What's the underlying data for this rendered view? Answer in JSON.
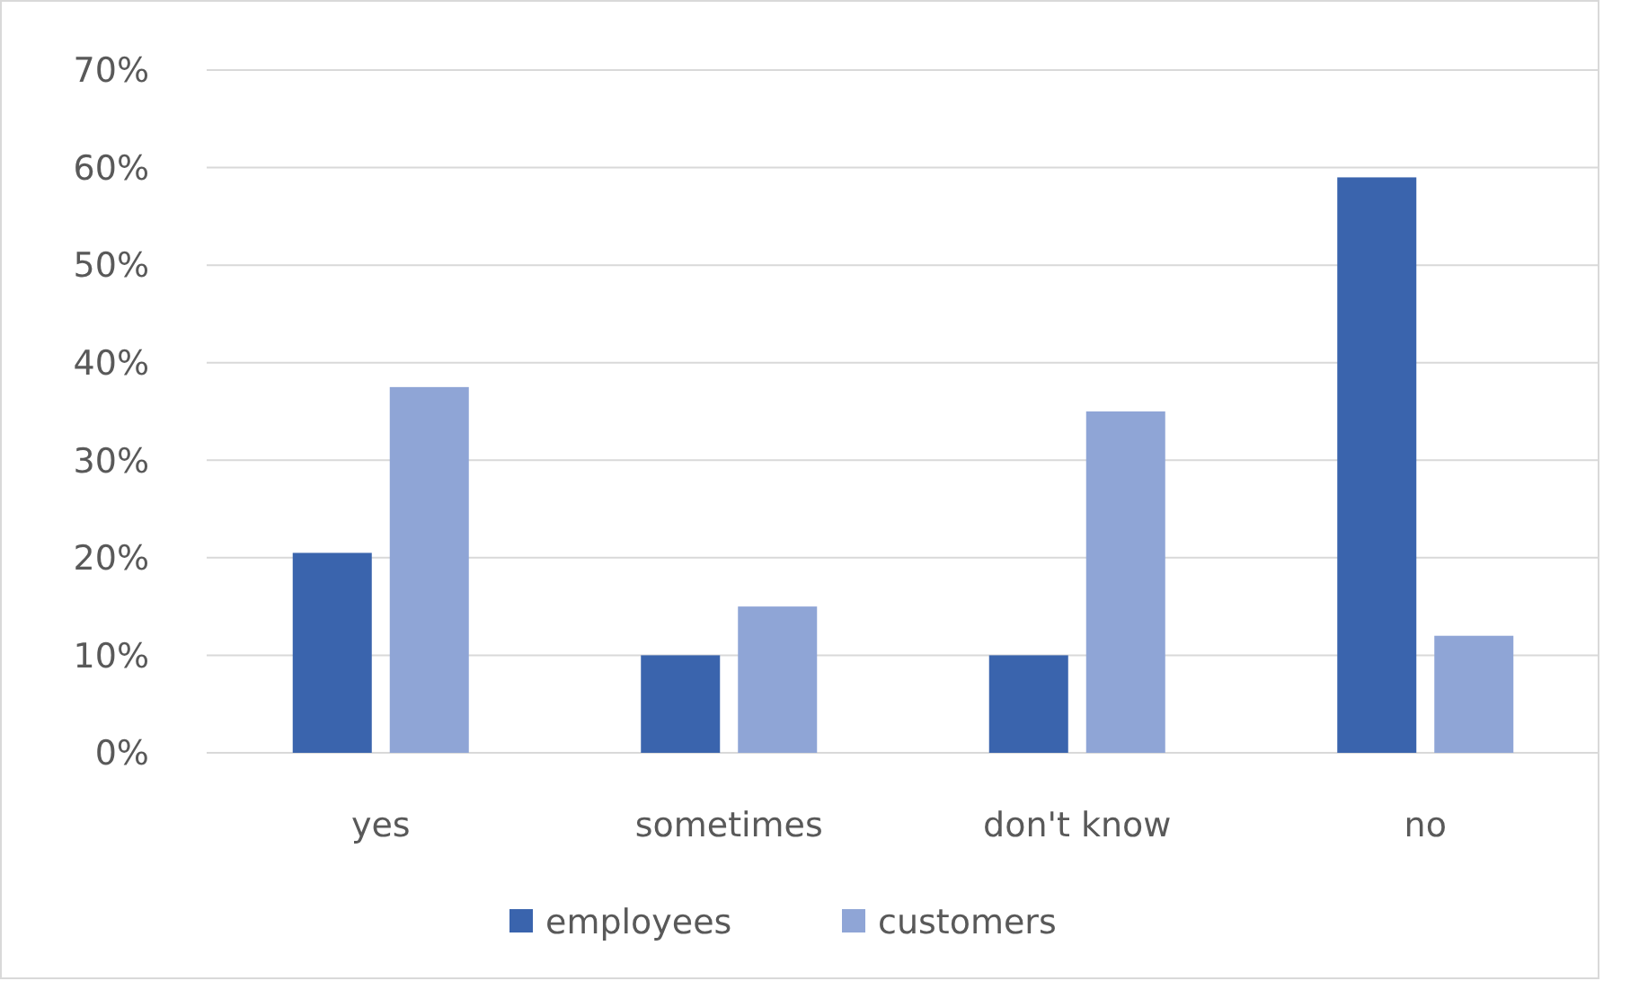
{
  "chart_data": {
    "type": "bar",
    "categories": [
      "yes",
      "sometimes",
      "don't know",
      "no"
    ],
    "series": [
      {
        "name": "employees",
        "color": "#3a64ad",
        "values": [
          20.5,
          10,
          10,
          59
        ]
      },
      {
        "name": "customers",
        "color": "#8fa5d6",
        "values": [
          37.5,
          15,
          35,
          12
        ]
      }
    ],
    "ylim": [
      0,
      70
    ],
    "yticks": [
      {
        "value": 0,
        "label": "0%"
      },
      {
        "value": 10,
        "label": "10%"
      },
      {
        "value": 20,
        "label": "20%"
      },
      {
        "value": 30,
        "label": "30%"
      },
      {
        "value": 40,
        "label": "40%"
      },
      {
        "value": 50,
        "label": "50%"
      },
      {
        "value": 60,
        "label": "60%"
      },
      {
        "value": 70,
        "label": "70%"
      }
    ],
    "grid": "y",
    "legend": "bottom"
  }
}
